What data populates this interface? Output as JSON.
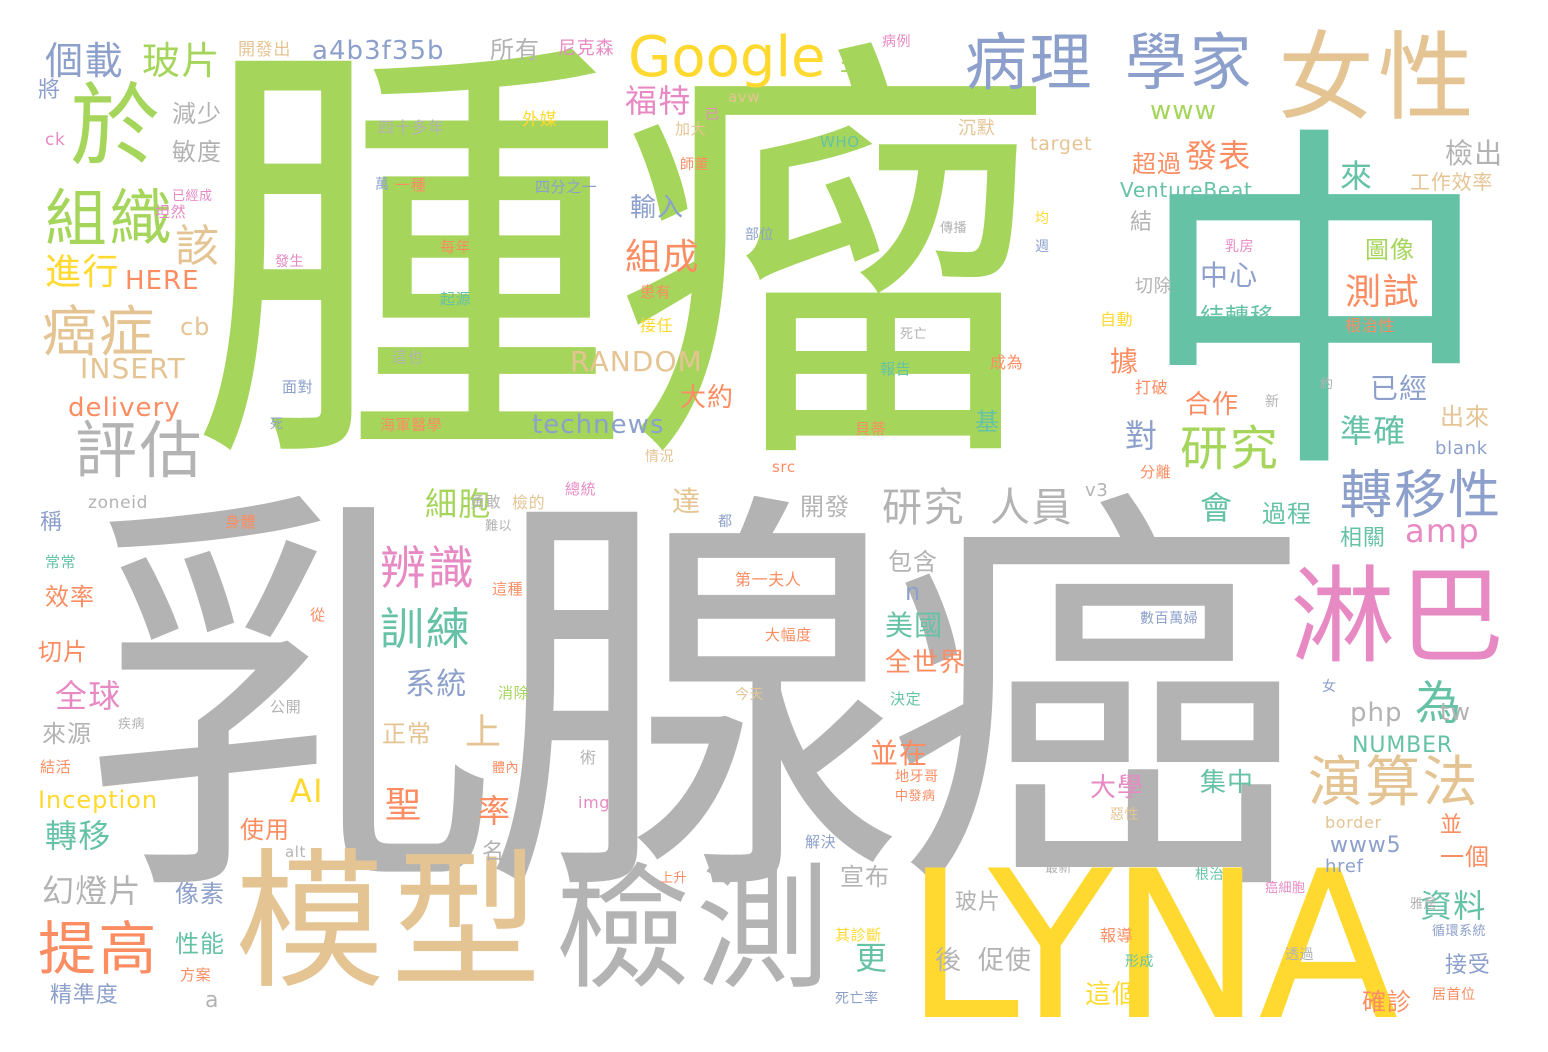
{
  "words": [
    {
      "text": "腫瘤",
      "color": "#a5d55b"
    },
    {
      "text": "乳腺癌",
      "color": "#b3b3b3"
    },
    {
      "text": "中",
      "color": "#66c2a5"
    },
    {
      "text": "LYNA",
      "color": "#ffd92f"
    },
    {
      "text": "模型",
      "color": "#e5c494"
    },
    {
      "text": "檢測",
      "color": "#b3b3b3"
    },
    {
      "text": "淋巴",
      "color": "#e78ac3"
    },
    {
      "text": "女性",
      "color": "#e5c494"
    },
    {
      "text": "於",
      "color": "#a5d55b"
    },
    {
      "text": "病理",
      "color": "#8da0cb"
    },
    {
      "text": "學家",
      "color": "#8da0cb"
    },
    {
      "text": "Google",
      "color": "#ffd92f"
    },
    {
      "text": "組織",
      "color": "#a5d55b"
    },
    {
      "text": "評估",
      "color": "#b3b3b3"
    },
    {
      "text": "癌症",
      "color": "#e5c494"
    },
    {
      "text": "提高",
      "color": "#fc8d62"
    },
    {
      "text": "演算法",
      "color": "#e5c494"
    },
    {
      "text": "轉移性",
      "color": "#8da0cb"
    },
    {
      "text": "研究",
      "color": "#a5d55b"
    },
    {
      "text": "研究",
      "color": "#b3b3b3"
    },
    {
      "text": "人員",
      "color": "#b3b3b3"
    },
    {
      "text": "辨識",
      "color": "#e78ac3"
    },
    {
      "text": "訓練",
      "color": "#66c2a5"
    },
    {
      "text": "個載",
      "color": "#8da0cb"
    },
    {
      "text": "玻片",
      "color": "#a5d55b"
    },
    {
      "text": "a4b3f35b",
      "color": "#8da0cb"
    },
    {
      "text": "所有",
      "color": "#b3b3b3"
    },
    {
      "text": "尼克森",
      "color": "#e78ac3"
    },
    {
      "text": "開發出",
      "color": "#e5c494"
    },
    {
      "text": "病例",
      "color": "#e78ac3"
    },
    {
      "text": "年",
      "color": "#a5d55b"
    },
    {
      "text": "福特",
      "color": "#e78ac3"
    },
    {
      "text": "已",
      "color": "#e78ac3"
    },
    {
      "text": "avw",
      "color": "#e5c494"
    },
    {
      "text": "www",
      "color": "#a5d55b"
    },
    {
      "text": "將",
      "color": "#8da0cb"
    },
    {
      "text": "減少",
      "color": "#b3b3b3"
    },
    {
      "text": "敏度",
      "color": "#b3b3b3"
    },
    {
      "text": "四十多年",
      "color": "#b3b3b3"
    },
    {
      "text": "外媒",
      "color": "#ffd92f"
    },
    {
      "text": "加大",
      "color": "#e5c494"
    },
    {
      "text": "沉默",
      "color": "#e5c494"
    },
    {
      "text": "target",
      "color": "#e5c494"
    },
    {
      "text": "ck",
      "color": "#e78ac3"
    },
    {
      "text": "師董",
      "color": "#fc8d62"
    },
    {
      "text": "WHO",
      "color": "#66c2a5"
    },
    {
      "text": "發表",
      "color": "#fc8d62"
    },
    {
      "text": "檢出",
      "color": "#b3b3b3"
    },
    {
      "text": "超過",
      "color": "#fc8d62"
    },
    {
      "text": "來",
      "color": "#66c2a5"
    },
    {
      "text": "工作效率",
      "color": "#e5c494"
    },
    {
      "text": "已經成",
      "color": "#e78ac3"
    },
    {
      "text": "萬",
      "color": "#8da0cb"
    },
    {
      "text": "一種",
      "color": "#fc8d62"
    },
    {
      "text": "四分之一",
      "color": "#8da0cb"
    },
    {
      "text": "VentureBeat",
      "color": "#66c2a5"
    },
    {
      "text": "輸入",
      "color": "#8da0cb"
    },
    {
      "text": "組成",
      "color": "#fc8d62"
    },
    {
      "text": "進行",
      "color": "#ffd92f"
    },
    {
      "text": "該",
      "color": "#e5c494"
    },
    {
      "text": "HERE",
      "color": "#fc8d62"
    },
    {
      "text": "坦然",
      "color": "#e78ac3"
    },
    {
      "text": "發生",
      "color": "#e78ac3"
    },
    {
      "text": "每年",
      "color": "#fc8d62"
    },
    {
      "text": "部位",
      "color": "#8da0cb"
    },
    {
      "text": "傳播",
      "color": "#b3b3b3"
    },
    {
      "text": "均",
      "color": "#ffd92f"
    },
    {
      "text": "週",
      "color": "#8da0cb"
    },
    {
      "text": "乳房",
      "color": "#e78ac3"
    },
    {
      "text": "中心",
      "color": "#8da0cb"
    },
    {
      "text": "圖像",
      "color": "#a5d55b"
    },
    {
      "text": "測試",
      "color": "#fc8d62"
    },
    {
      "text": "結轉移",
      "color": "#66c2a5"
    },
    {
      "text": "起源",
      "color": "#66c2a5"
    },
    {
      "text": "患有",
      "color": "#fc8d62"
    },
    {
      "text": "接任",
      "color": "#ffd92f"
    },
    {
      "text": "切除",
      "color": "#b3b3b3"
    },
    {
      "text": "自動",
      "color": "#ffd92f"
    },
    {
      "text": "根治性",
      "color": "#fc8d62"
    },
    {
      "text": "cb",
      "color": "#e5c494"
    },
    {
      "text": "INSERT",
      "color": "#e5c494"
    },
    {
      "text": "RANDOM",
      "color": "#e5c494"
    },
    {
      "text": "死亡",
      "color": "#b3b3b3"
    },
    {
      "text": "這也",
      "color": "#b3b3b3"
    },
    {
      "text": "報告",
      "color": "#66c2a5"
    },
    {
      "text": "成為",
      "color": "#fc8d62"
    },
    {
      "text": "據",
      "color": "#fc8d62"
    },
    {
      "text": "已經",
      "color": "#8da0cb"
    },
    {
      "text": "大約",
      "color": "#fc8d62"
    },
    {
      "text": "面對",
      "color": "#8da0cb"
    },
    {
      "text": "打破",
      "color": "#fc8d62"
    },
    {
      "text": "約",
      "color": "#b3b3b3"
    },
    {
      "text": "delivery",
      "color": "#fc8d62"
    },
    {
      "text": "technews",
      "color": "#8da0cb"
    },
    {
      "text": "合作",
      "color": "#fc8d62"
    },
    {
      "text": "新",
      "color": "#b3b3b3"
    },
    {
      "text": "出來",
      "color": "#e5c494"
    },
    {
      "text": "死",
      "color": "#8da0cb"
    },
    {
      "text": "海軍醫學",
      "color": "#fc8d62"
    },
    {
      "text": "貝蒂",
      "color": "#fc8d62"
    },
    {
      "text": "基",
      "color": "#66c2a5"
    },
    {
      "text": "對",
      "color": "#8da0cb"
    },
    {
      "text": "準確",
      "color": "#66c2a5"
    },
    {
      "text": "blank",
      "color": "#8da0cb"
    },
    {
      "text": "情況",
      "color": "#e5c494"
    },
    {
      "text": "src",
      "color": "#fc8d62"
    },
    {
      "text": "分離",
      "color": "#fc8d62"
    },
    {
      "text": "zoneid",
      "color": "#b3b3b3"
    },
    {
      "text": "細胞",
      "color": "#a5d55b"
    },
    {
      "text": "達",
      "color": "#e5c494"
    },
    {
      "text": "v3",
      "color": "#b3b3b3"
    },
    {
      "text": "會",
      "color": "#66c2a5"
    },
    {
      "text": "過程",
      "color": "#66c2a5"
    },
    {
      "text": "稱",
      "color": "#8da0cb"
    },
    {
      "text": "勇敢",
      "color": "#b3b3b3"
    },
    {
      "text": "檢的",
      "color": "#e5c494"
    },
    {
      "text": "總統",
      "color": "#e78ac3"
    },
    {
      "text": "難以",
      "color": "#b3b3b3"
    },
    {
      "text": "都",
      "color": "#8da0cb"
    },
    {
      "text": "開發",
      "color": "#b3b3b3"
    },
    {
      "text": "amp",
      "color": "#e78ac3"
    },
    {
      "text": "相關",
      "color": "#66c2a5"
    },
    {
      "text": "身體",
      "color": "#fc8d62"
    },
    {
      "text": "常常",
      "color": "#66c2a5"
    },
    {
      "text": "這種",
      "color": "#fc8d62"
    },
    {
      "text": "包含",
      "color": "#b3b3b3"
    },
    {
      "text": "第一夫人",
      "color": "#fc8d62"
    },
    {
      "text": "效率",
      "color": "#fc8d62"
    },
    {
      "text": "從",
      "color": "#fc8d62"
    },
    {
      "text": "n",
      "color": "#8da0cb"
    },
    {
      "text": "大幅度",
      "color": "#fc8d62"
    },
    {
      "text": "數百萬婦",
      "color": "#8da0cb"
    },
    {
      "text": "美國",
      "color": "#66c2a5"
    },
    {
      "text": "切片",
      "color": "#fc8d62"
    },
    {
      "text": "全世界",
      "color": "#fc8d62"
    },
    {
      "text": "系統",
      "color": "#8da0cb"
    },
    {
      "text": "為",
      "color": "#66c2a5"
    },
    {
      "text": "全球",
      "color": "#e78ac3"
    },
    {
      "text": "消除",
      "color": "#a5d55b"
    },
    {
      "text": "決定",
      "color": "#66c2a5"
    },
    {
      "text": "女",
      "color": "#8da0cb"
    },
    {
      "text": "公開",
      "color": "#b3b3b3"
    },
    {
      "text": "今天",
      "color": "#e5c494"
    },
    {
      "text": "php",
      "color": "#b3b3b3"
    },
    {
      "text": "tw",
      "color": "#b3b3b3"
    },
    {
      "text": "上",
      "color": "#e5c494"
    },
    {
      "text": "正常",
      "color": "#e5c494"
    },
    {
      "text": "來源",
      "color": "#b3b3b3"
    },
    {
      "text": "疾病",
      "color": "#b3b3b3"
    },
    {
      "text": "NUMBER",
      "color": "#66c2a5"
    },
    {
      "text": "並在",
      "color": "#fc8d62"
    },
    {
      "text": "結活",
      "color": "#fc8d62"
    },
    {
      "text": "體內",
      "color": "#fc8d62"
    },
    {
      "text": "術",
      "color": "#b3b3b3"
    },
    {
      "text": "地牙哥",
      "color": "#fc8d62"
    },
    {
      "text": "中發病",
      "color": "#fc8d62"
    },
    {
      "text": "惡性",
      "color": "#e5c494"
    },
    {
      "text": "大學",
      "color": "#e78ac3"
    },
    {
      "text": "集中",
      "color": "#66c2a5"
    },
    {
      "text": "AI",
      "color": "#ffd92f"
    },
    {
      "text": "聖",
      "color": "#fc8d62"
    },
    {
      "text": "Inception",
      "color": "#ffd92f"
    },
    {
      "text": "img",
      "color": "#e78ac3"
    },
    {
      "text": "率",
      "color": "#fc8d62"
    },
    {
      "text": "border",
      "color": "#e5c494"
    },
    {
      "text": "並",
      "color": "#fc8d62"
    },
    {
      "text": "轉移",
      "color": "#66c2a5"
    },
    {
      "text": "使用",
      "color": "#fc8d62"
    },
    {
      "text": "www5",
      "color": "#8da0cb"
    },
    {
      "text": "一個",
      "color": "#fc8d62"
    },
    {
      "text": "alt",
      "color": "#b3b3b3"
    },
    {
      "text": "解決",
      "color": "#8da0cb"
    },
    {
      "text": "名",
      "color": "#b3b3b3"
    },
    {
      "text": "href",
      "color": "#8da0cb"
    },
    {
      "text": "宣布",
      "color": "#b3b3b3"
    },
    {
      "text": "幻燈片",
      "color": "#b3b3b3"
    },
    {
      "text": "上升",
      "color": "#fc8d62"
    },
    {
      "text": "最新",
      "color": "#b3b3b3"
    },
    {
      "text": "根治",
      "color": "#66c2a5"
    },
    {
      "text": "癌細胞",
      "color": "#e78ac3"
    },
    {
      "text": "像素",
      "color": "#8da0cb"
    },
    {
      "text": "玻片",
      "color": "#b3b3b3"
    },
    {
      "text": "資料",
      "color": "#66c2a5"
    },
    {
      "text": "雅居",
      "color": "#b3b3b3"
    },
    {
      "text": "其診斷",
      "color": "#ffd92f"
    },
    {
      "text": "報導",
      "color": "#fc8d62"
    },
    {
      "text": "循環系統",
      "color": "#8da0cb"
    },
    {
      "text": "性能",
      "color": "#66c2a5"
    },
    {
      "text": "方案",
      "color": "#fc8d62"
    },
    {
      "text": "更",
      "color": "#66c2a5"
    },
    {
      "text": "後",
      "color": "#b3b3b3"
    },
    {
      "text": "促使",
      "color": "#b3b3b3"
    },
    {
      "text": "透過",
      "color": "#b3b3b3"
    },
    {
      "text": "接受",
      "color": "#8da0cb"
    },
    {
      "text": "形成",
      "color": "#66c2a5"
    },
    {
      "text": "精準度",
      "color": "#8da0cb"
    },
    {
      "text": "a",
      "color": "#b3b3b3"
    },
    {
      "text": "死亡率",
      "color": "#8da0cb"
    },
    {
      "text": "這個",
      "color": "#ffd92f"
    },
    {
      "text": "確診",
      "color": "#fc8d62"
    },
    {
      "text": "居首位",
      "color": "#fc8d62"
    },
    {
      "text": "結",
      "color": "#b3b3b3"
    }
  ]
}
